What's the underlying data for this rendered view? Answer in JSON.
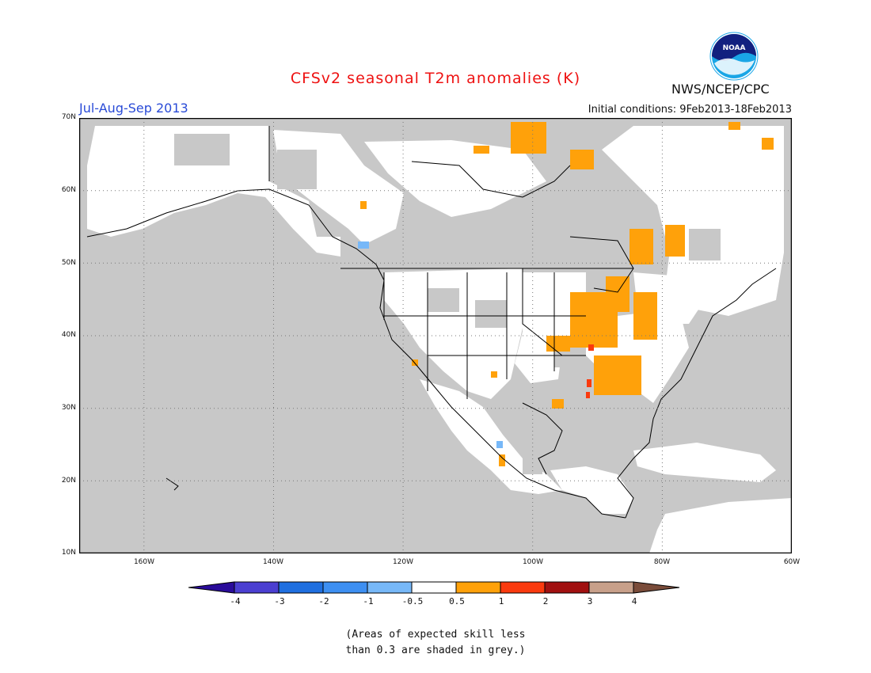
{
  "header": {
    "title": "CFSv2 seasonal T2m anomalies (K)",
    "season": "Jul-Aug-Sep 2013",
    "initial_conditions": "Initial conditions: 9Feb2013-18Feb2013",
    "agency": "NWS/NCEP/CPC",
    "logo_text": "NOAA"
  },
  "map": {
    "lat_labels": [
      "70N",
      "60N",
      "50N",
      "40N",
      "30N",
      "20N",
      "10N"
    ],
    "lon_labels": [
      "160W",
      "140W",
      "120W",
      "100W",
      "80W",
      "60W"
    ],
    "lat_range": [
      10,
      70
    ],
    "lon_range": [
      -170,
      -60
    ],
    "grid": "dotted",
    "shading": {
      "no_skill_color": "#c8c8c8",
      "near_zero_color": "#ffffff"
    }
  },
  "colorbar": {
    "ticks": [
      "-4",
      "-3",
      "-2",
      "-1",
      "-0.5",
      "0.5",
      "1",
      "2",
      "3",
      "4"
    ],
    "colors": [
      "#2a0c9a",
      "#4b3fd1",
      "#1f6fe0",
      "#3d8ff2",
      "#77b8f8",
      "#ffffff",
      "#ffa10a",
      "#fa3a0e",
      "#a11010",
      "#c8a08a",
      "#7a4c3a"
    ]
  },
  "footnote": {
    "line1": "(Areas of expected skill less",
    "line2": "than 0.3 are shaded in grey.)"
  }
}
